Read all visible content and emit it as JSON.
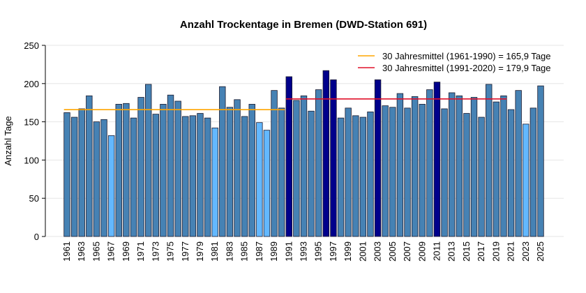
{
  "chart_data": {
    "type": "bar",
    "title": "Anzahl Trockentage in Bremen (DWD-Station 691)",
    "xlabel": "",
    "ylabel": "Anzahl Tage",
    "ylim": [
      0,
      250
    ],
    "yticks": [
      0,
      50,
      100,
      150,
      200,
      250
    ],
    "grid": true,
    "legend_placement": "top-right",
    "colors": {
      "normal": "#4682B4",
      "low": "#63B8FF",
      "high": "#00008B",
      "mean1": "#FFA500",
      "mean2": "#E0102A"
    },
    "x": [
      1961,
      1962,
      1963,
      1964,
      1965,
      1966,
      1967,
      1968,
      1969,
      1970,
      1971,
      1972,
      1973,
      1974,
      1975,
      1976,
      1977,
      1978,
      1979,
      1980,
      1981,
      1982,
      1983,
      1984,
      1985,
      1986,
      1987,
      1988,
      1989,
      1990,
      1991,
      1992,
      1993,
      1994,
      1995,
      1996,
      1997,
      1998,
      1999,
      2000,
      2001,
      2002,
      2003,
      2004,
      2005,
      2006,
      2007,
      2008,
      2009,
      2010,
      2011,
      2012,
      2013,
      2014,
      2015,
      2016,
      2017,
      2018,
      2019,
      2020,
      2021,
      2022,
      2023,
      2024,
      2025
    ],
    "values": [
      162,
      156,
      167,
      184,
      150,
      153,
      132,
      173,
      174,
      155,
      182,
      199,
      160,
      173,
      185,
      177,
      157,
      158,
      161,
      155,
      142,
      196,
      169,
      179,
      157,
      173,
      149,
      139,
      191,
      168,
      209,
      178,
      184,
      164,
      192,
      217,
      205,
      155,
      168,
      158,
      156,
      163,
      205,
      171,
      169,
      187,
      168,
      183,
      173,
      192,
      202,
      167,
      188,
      184,
      161,
      182,
      156,
      199,
      176,
      184,
      166,
      191,
      147,
      168,
      197
    ],
    "bar_class": [
      "normal",
      "normal",
      "normal",
      "normal",
      "normal",
      "normal",
      "low",
      "normal",
      "normal",
      "normal",
      "normal",
      "normal",
      "normal",
      "normal",
      "normal",
      "normal",
      "normal",
      "normal",
      "normal",
      "normal",
      "low",
      "normal",
      "normal",
      "normal",
      "normal",
      "normal",
      "low",
      "low",
      "normal",
      "normal",
      "high",
      "normal",
      "normal",
      "normal",
      "normal",
      "high",
      "high",
      "normal",
      "normal",
      "normal",
      "normal",
      "normal",
      "high",
      "normal",
      "normal",
      "normal",
      "normal",
      "normal",
      "normal",
      "normal",
      "high",
      "normal",
      "normal",
      "normal",
      "normal",
      "normal",
      "normal",
      "normal",
      "normal",
      "normal",
      "normal",
      "normal",
      "low",
      "normal",
      "normal"
    ],
    "mean_lines": [
      {
        "label": "30 Jahresmittel (1961-1990) = 165,9 Tage",
        "value": 165.9,
        "from": 1961,
        "to": 1990,
        "color": "#FFA500"
      },
      {
        "label": "30 Jahresmittel (1991-2020) = 179,9 Tage",
        "value": 179.9,
        "from": 1991,
        "to": 2020,
        "color": "#E0102A"
      }
    ]
  }
}
